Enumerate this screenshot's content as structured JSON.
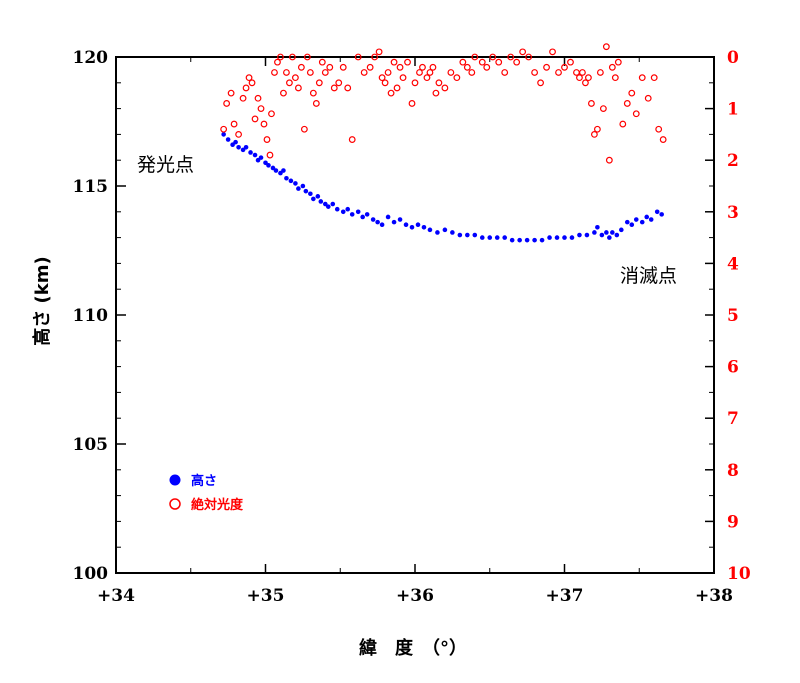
{
  "chart_data": {
    "type": "scatter",
    "xlabel": "緯　度　（°）",
    "ylabel": "高さ (km)",
    "y2label": "",
    "xlim": [
      34,
      38
    ],
    "ylim": [
      100,
      120
    ],
    "y2lim": [
      10,
      0
    ],
    "x_ticks": [
      "+34",
      "+35",
      "+36",
      "+37",
      "+38"
    ],
    "y_ticks": [
      "100",
      "105",
      "110",
      "115",
      "120"
    ],
    "y2_ticks": [
      "0",
      "1",
      "2",
      "3",
      "4",
      "5",
      "6",
      "7",
      "8",
      "9",
      "10"
    ],
    "annotations": {
      "start": "発光点",
      "end": "消滅点"
    },
    "legend": [
      {
        "name": "高さ",
        "color": "#0000ff",
        "marker": "filled-circle"
      },
      {
        "name": "絶対光度",
        "color": "#ff0000",
        "marker": "open-circle"
      }
    ],
    "series": [
      {
        "name": "高さ",
        "axis": "left",
        "color": "#0000ff",
        "points": [
          [
            34.72,
            117.0
          ],
          [
            34.75,
            116.8
          ],
          [
            34.78,
            116.6
          ],
          [
            34.8,
            116.7
          ],
          [
            34.82,
            116.5
          ],
          [
            34.85,
            116.4
          ],
          [
            34.87,
            116.5
          ],
          [
            34.9,
            116.3
          ],
          [
            34.93,
            116.2
          ],
          [
            34.95,
            116.0
          ],
          [
            34.97,
            116.1
          ],
          [
            35.0,
            115.9
          ],
          [
            35.02,
            115.8
          ],
          [
            35.05,
            115.7
          ],
          [
            35.07,
            115.6
          ],
          [
            35.1,
            115.5
          ],
          [
            35.12,
            115.6
          ],
          [
            35.14,
            115.3
          ],
          [
            35.17,
            115.2
          ],
          [
            35.2,
            115.1
          ],
          [
            35.22,
            114.9
          ],
          [
            35.25,
            115.0
          ],
          [
            35.27,
            114.8
          ],
          [
            35.3,
            114.7
          ],
          [
            35.32,
            114.5
          ],
          [
            35.35,
            114.6
          ],
          [
            35.37,
            114.4
          ],
          [
            35.4,
            114.3
          ],
          [
            35.42,
            114.2
          ],
          [
            35.45,
            114.3
          ],
          [
            35.48,
            114.1
          ],
          [
            35.52,
            114.0
          ],
          [
            35.55,
            114.1
          ],
          [
            35.58,
            113.9
          ],
          [
            35.62,
            114.0
          ],
          [
            35.65,
            113.8
          ],
          [
            35.68,
            113.9
          ],
          [
            35.72,
            113.7
          ],
          [
            35.75,
            113.6
          ],
          [
            35.78,
            113.5
          ],
          [
            35.82,
            113.8
          ],
          [
            35.86,
            113.6
          ],
          [
            35.9,
            113.7
          ],
          [
            35.94,
            113.5
          ],
          [
            35.98,
            113.4
          ],
          [
            36.02,
            113.5
          ],
          [
            36.06,
            113.4
          ],
          [
            36.1,
            113.3
          ],
          [
            36.15,
            113.2
          ],
          [
            36.2,
            113.3
          ],
          [
            36.25,
            113.2
          ],
          [
            36.3,
            113.1
          ],
          [
            36.35,
            113.1
          ],
          [
            36.4,
            113.1
          ],
          [
            36.45,
            113.0
          ],
          [
            36.5,
            113.0
          ],
          [
            36.55,
            113.0
          ],
          [
            36.6,
            113.0
          ],
          [
            36.65,
            112.9
          ],
          [
            36.7,
            112.9
          ],
          [
            36.75,
            112.9
          ],
          [
            36.8,
            112.9
          ],
          [
            36.85,
            112.9
          ],
          [
            36.9,
            113.0
          ],
          [
            36.95,
            113.0
          ],
          [
            37.0,
            113.0
          ],
          [
            37.05,
            113.0
          ],
          [
            37.1,
            113.1
          ],
          [
            37.15,
            113.1
          ],
          [
            37.2,
            113.2
          ],
          [
            37.22,
            113.4
          ],
          [
            37.25,
            113.1
          ],
          [
            37.28,
            113.2
          ],
          [
            37.3,
            113.0
          ],
          [
            37.32,
            113.2
          ],
          [
            37.35,
            113.1
          ],
          [
            37.38,
            113.3
          ],
          [
            37.42,
            113.6
          ],
          [
            37.45,
            113.5
          ],
          [
            37.48,
            113.7
          ],
          [
            37.52,
            113.6
          ],
          [
            37.55,
            113.8
          ],
          [
            37.58,
            113.7
          ],
          [
            37.62,
            114.0
          ],
          [
            37.65,
            113.9
          ]
        ]
      },
      {
        "name": "絶対光度",
        "axis": "right",
        "color": "#ff0000",
        "points": [
          [
            34.72,
            1.4
          ],
          [
            34.74,
            0.9
          ],
          [
            34.77,
            0.7
          ],
          [
            34.79,
            1.3
          ],
          [
            34.82,
            1.5
          ],
          [
            34.85,
            0.8
          ],
          [
            34.87,
            0.6
          ],
          [
            34.89,
            0.4
          ],
          [
            34.91,
            0.5
          ],
          [
            34.93,
            1.2
          ],
          [
            34.95,
            0.8
          ],
          [
            34.97,
            1.0
          ],
          [
            34.99,
            1.3
          ],
          [
            35.01,
            1.6
          ],
          [
            35.03,
            1.9
          ],
          [
            35.04,
            1.1
          ],
          [
            35.06,
            0.3
          ],
          [
            35.08,
            0.1
          ],
          [
            35.1,
            0.0
          ],
          [
            35.12,
            0.7
          ],
          [
            35.14,
            0.3
          ],
          [
            35.16,
            0.5
          ],
          [
            35.18,
            0.0
          ],
          [
            35.2,
            0.4
          ],
          [
            35.22,
            0.6
          ],
          [
            35.24,
            0.2
          ],
          [
            35.26,
            1.4
          ],
          [
            35.28,
            0.0
          ],
          [
            35.3,
            0.3
          ],
          [
            35.32,
            0.7
          ],
          [
            35.34,
            0.9
          ],
          [
            35.36,
            0.5
          ],
          [
            35.38,
            0.1
          ],
          [
            35.4,
            0.3
          ],
          [
            35.43,
            0.2
          ],
          [
            35.46,
            0.6
          ],
          [
            35.49,
            0.5
          ],
          [
            35.52,
            0.2
          ],
          [
            35.55,
            0.6
          ],
          [
            35.58,
            1.6
          ],
          [
            35.62,
            0.0
          ],
          [
            35.66,
            0.3
          ],
          [
            35.7,
            0.2
          ],
          [
            35.73,
            0.0
          ],
          [
            35.76,
            -0.1
          ],
          [
            35.78,
            0.4
          ],
          [
            35.8,
            0.5
          ],
          [
            35.82,
            0.3
          ],
          [
            35.84,
            0.7
          ],
          [
            35.86,
            0.1
          ],
          [
            35.88,
            0.6
          ],
          [
            35.9,
            0.2
          ],
          [
            35.92,
            0.4
          ],
          [
            35.95,
            0.1
          ],
          [
            35.98,
            0.9
          ],
          [
            36.0,
            0.5
          ],
          [
            36.03,
            0.3
          ],
          [
            36.05,
            0.2
          ],
          [
            36.08,
            0.4
          ],
          [
            36.1,
            0.3
          ],
          [
            36.12,
            0.2
          ],
          [
            36.14,
            0.7
          ],
          [
            36.16,
            0.5
          ],
          [
            36.2,
            0.6
          ],
          [
            36.24,
            0.3
          ],
          [
            36.28,
            0.4
          ],
          [
            36.32,
            0.1
          ],
          [
            36.35,
            0.2
          ],
          [
            36.38,
            0.3
          ],
          [
            36.4,
            0.0
          ],
          [
            36.45,
            0.1
          ],
          [
            36.48,
            0.2
          ],
          [
            36.52,
            0.0
          ],
          [
            36.56,
            0.1
          ],
          [
            36.6,
            0.3
          ],
          [
            36.64,
            0.0
          ],
          [
            36.68,
            0.1
          ],
          [
            36.72,
            -0.1
          ],
          [
            36.76,
            0.0
          ],
          [
            36.8,
            0.3
          ],
          [
            36.84,
            0.5
          ],
          [
            36.88,
            0.2
          ],
          [
            36.92,
            -0.1
          ],
          [
            36.96,
            0.3
          ],
          [
            37.0,
            0.2
          ],
          [
            37.04,
            0.1
          ],
          [
            37.08,
            0.3
          ],
          [
            37.1,
            0.4
          ],
          [
            37.12,
            0.3
          ],
          [
            37.14,
            0.5
          ],
          [
            37.16,
            0.4
          ],
          [
            37.18,
            0.9
          ],
          [
            37.2,
            1.5
          ],
          [
            37.22,
            1.4
          ],
          [
            37.24,
            0.3
          ],
          [
            37.26,
            1.0
          ],
          [
            37.28,
            -0.2
          ],
          [
            37.3,
            2.0
          ],
          [
            37.32,
            0.2
          ],
          [
            37.34,
            0.4
          ],
          [
            37.36,
            0.1
          ],
          [
            37.39,
            1.3
          ],
          [
            37.42,
            0.9
          ],
          [
            37.45,
            0.7
          ],
          [
            37.48,
            1.1
          ],
          [
            37.52,
            0.4
          ],
          [
            37.56,
            0.8
          ],
          [
            37.6,
            0.4
          ],
          [
            37.63,
            1.4
          ],
          [
            37.66,
            1.6
          ]
        ]
      }
    ]
  }
}
